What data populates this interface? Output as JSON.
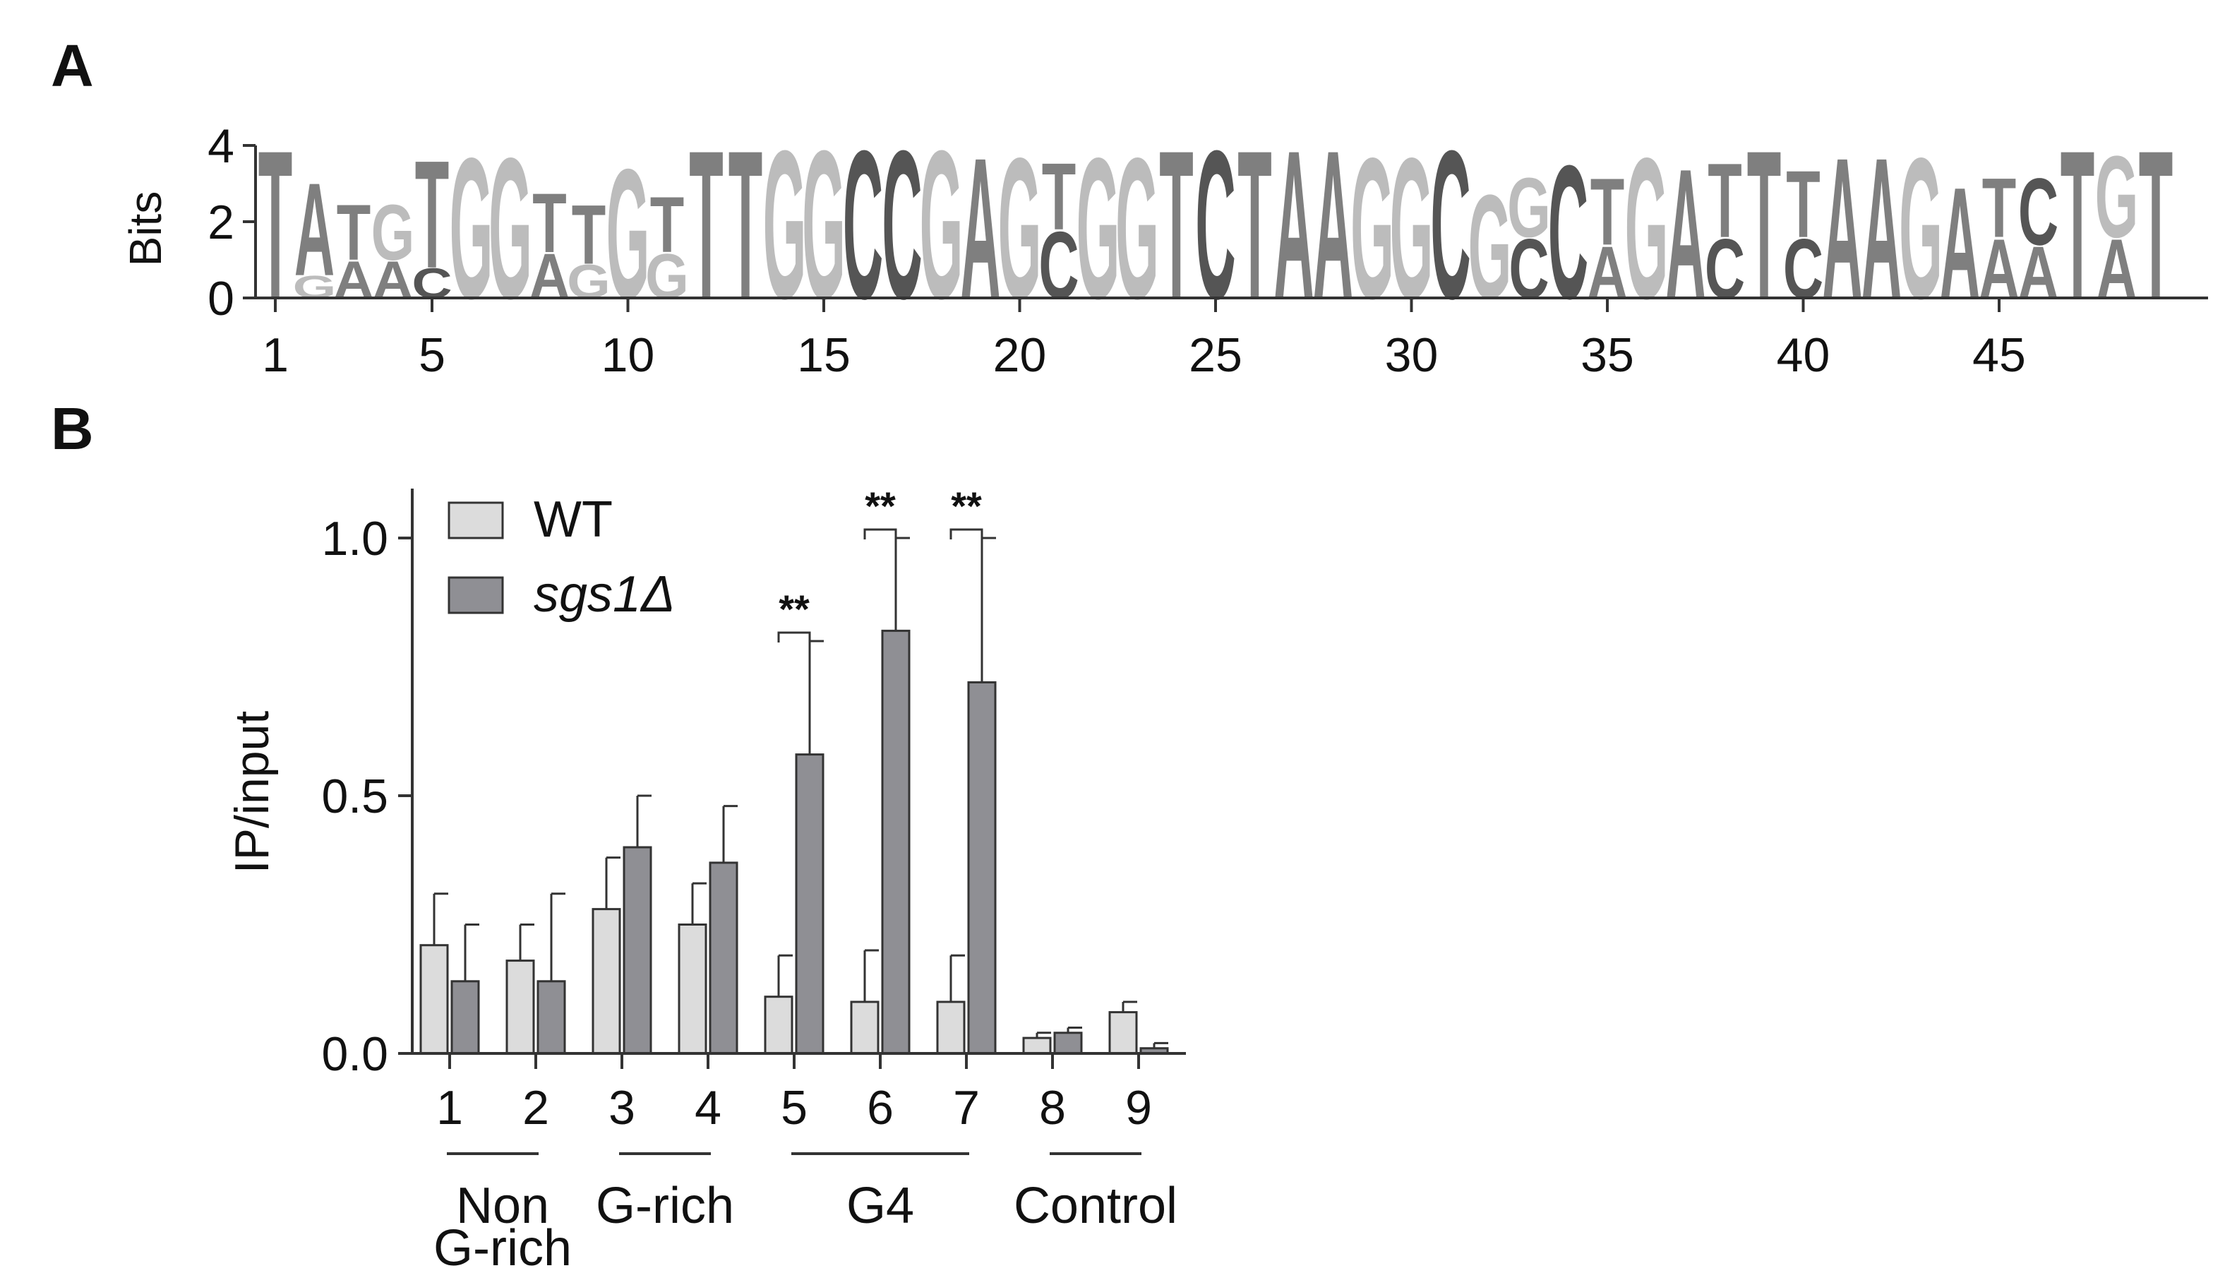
{
  "panels": {
    "a_label": "A",
    "b_label": "B"
  },
  "chart_data": [
    {
      "type": "sequence-logo",
      "ylabel": "Bits",
      "ylim": [
        0,
        4
      ],
      "yticks": [
        "0",
        "2",
        "4"
      ],
      "xticks": [
        "1",
        "5",
        "10",
        "15",
        "20",
        "25",
        "30",
        "35",
        "40",
        "45"
      ],
      "alphabet_colors": {
        "T": "#7f7f7f",
        "A": "#7f7f7f",
        "G": "#bcbcbc",
        "C": "#555555"
      },
      "positions": [
        [
          [
            "T",
            4.0
          ]
        ],
        [
          [
            "G",
            0.6
          ],
          [
            "A",
            2.5
          ]
        ],
        [
          [
            "A",
            1.0
          ],
          [
            "T",
            1.5
          ]
        ],
        [
          [
            "A",
            1.0
          ],
          [
            "G",
            1.5
          ]
        ],
        [
          [
            "C",
            0.8
          ],
          [
            "T",
            2.9
          ]
        ],
        [
          [
            "G",
            3.8
          ]
        ],
        [
          [
            "G",
            3.8
          ]
        ],
        [
          [
            "A",
            1.2
          ],
          [
            "T",
            1.6
          ]
        ],
        [
          [
            "G",
            0.9
          ],
          [
            "T",
            1.6
          ]
        ],
        [
          [
            "G",
            3.5
          ]
        ],
        [
          [
            "G",
            1.2
          ],
          [
            "T",
            1.5
          ]
        ],
        [
          [
            "T",
            4.0
          ]
        ],
        [
          [
            "T",
            4.0
          ]
        ],
        [
          [
            "G",
            4.0
          ]
        ],
        [
          [
            "G",
            4.0
          ]
        ],
        [
          [
            "C",
            4.0
          ]
        ],
        [
          [
            "C",
            4.0
          ]
        ],
        [
          [
            "G",
            4.0
          ]
        ],
        [
          [
            "A",
            3.8
          ]
        ],
        [
          [
            "G",
            3.8
          ]
        ],
        [
          [
            "C",
            1.8
          ],
          [
            "T",
            1.8
          ]
        ],
        [
          [
            "G",
            3.8
          ]
        ],
        [
          [
            "G",
            3.8
          ]
        ],
        [
          [
            "T",
            4.0
          ]
        ],
        [
          [
            "C",
            4.0
          ]
        ],
        [
          [
            "T",
            4.0
          ]
        ],
        [
          [
            "A",
            4.0
          ]
        ],
        [
          [
            "A",
            4.0
          ]
        ],
        [
          [
            "G",
            3.8
          ]
        ],
        [
          [
            "G",
            3.8
          ]
        ],
        [
          [
            "C",
            4.0
          ]
        ],
        [
          [
            "G",
            2.8
          ]
        ],
        [
          [
            "C",
            1.6
          ],
          [
            "G",
            1.6
          ]
        ],
        [
          [
            "C",
            3.6
          ]
        ],
        [
          [
            "A",
            1.4
          ],
          [
            "T",
            1.8
          ]
        ],
        [
          [
            "G",
            3.8
          ]
        ],
        [
          [
            "A",
            3.5
          ]
        ],
        [
          [
            "C",
            1.6
          ],
          [
            "T",
            2.0
          ]
        ],
        [
          [
            "T",
            4.0
          ]
        ],
        [
          [
            "C",
            1.6
          ],
          [
            "T",
            1.8
          ]
        ],
        [
          [
            "A",
            3.8
          ]
        ],
        [
          [
            "A",
            3.8
          ]
        ],
        [
          [
            "G",
            3.8
          ]
        ],
        [
          [
            "A",
            3.0
          ]
        ],
        [
          [
            "A",
            1.6
          ],
          [
            "T",
            1.6
          ]
        ],
        [
          [
            "A",
            1.4
          ],
          [
            "C",
            1.8
          ]
        ],
        [
          [
            "T",
            4.0
          ]
        ],
        [
          [
            "A",
            1.6
          ],
          [
            "G",
            2.2
          ]
        ],
        [
          [
            "T",
            4.0
          ]
        ]
      ]
    },
    {
      "type": "bar",
      "ylabel": "IP/input",
      "ylim": [
        0,
        1.0
      ],
      "yticks": [
        "0.0",
        "0.5",
        "1.0"
      ],
      "categories": [
        "1",
        "2",
        "3",
        "4",
        "5",
        "6",
        "7",
        "8",
        "9"
      ],
      "series": [
        {
          "name": "WT",
          "color": "#dcdcdc",
          "values": [
            0.21,
            0.18,
            0.28,
            0.25,
            0.11,
            0.1,
            0.1,
            0.03,
            0.08
          ],
          "errors": [
            0.1,
            0.07,
            0.1,
            0.08,
            0.08,
            0.1,
            0.09,
            0.01,
            0.02
          ]
        },
        {
          "name": "sgs1Δ",
          "color": "#8f8f94",
          "values": [
            0.14,
            0.14,
            0.4,
            0.37,
            0.58,
            0.82,
            0.72,
            0.04,
            0.01
          ],
          "errors": [
            0.11,
            0.17,
            0.1,
            0.11,
            0.22,
            0.18,
            0.28,
            0.01,
            0.01
          ]
        }
      ],
      "significance": [
        {
          "category": "5",
          "label": "**"
        },
        {
          "category": "6",
          "label": "**"
        },
        {
          "category": "7",
          "label": "**"
        }
      ],
      "groups": [
        {
          "label_lines": [
            "Non",
            "G-rich"
          ],
          "from": 1,
          "to": 2
        },
        {
          "label_lines": [
            "G-rich"
          ],
          "from": 3,
          "to": 4
        },
        {
          "label_lines": [
            "G4"
          ],
          "from": 5,
          "to": 7
        },
        {
          "label_lines": [
            "Control"
          ],
          "from": 8,
          "to": 9
        }
      ],
      "legend": {
        "placement": "top-left"
      }
    }
  ]
}
